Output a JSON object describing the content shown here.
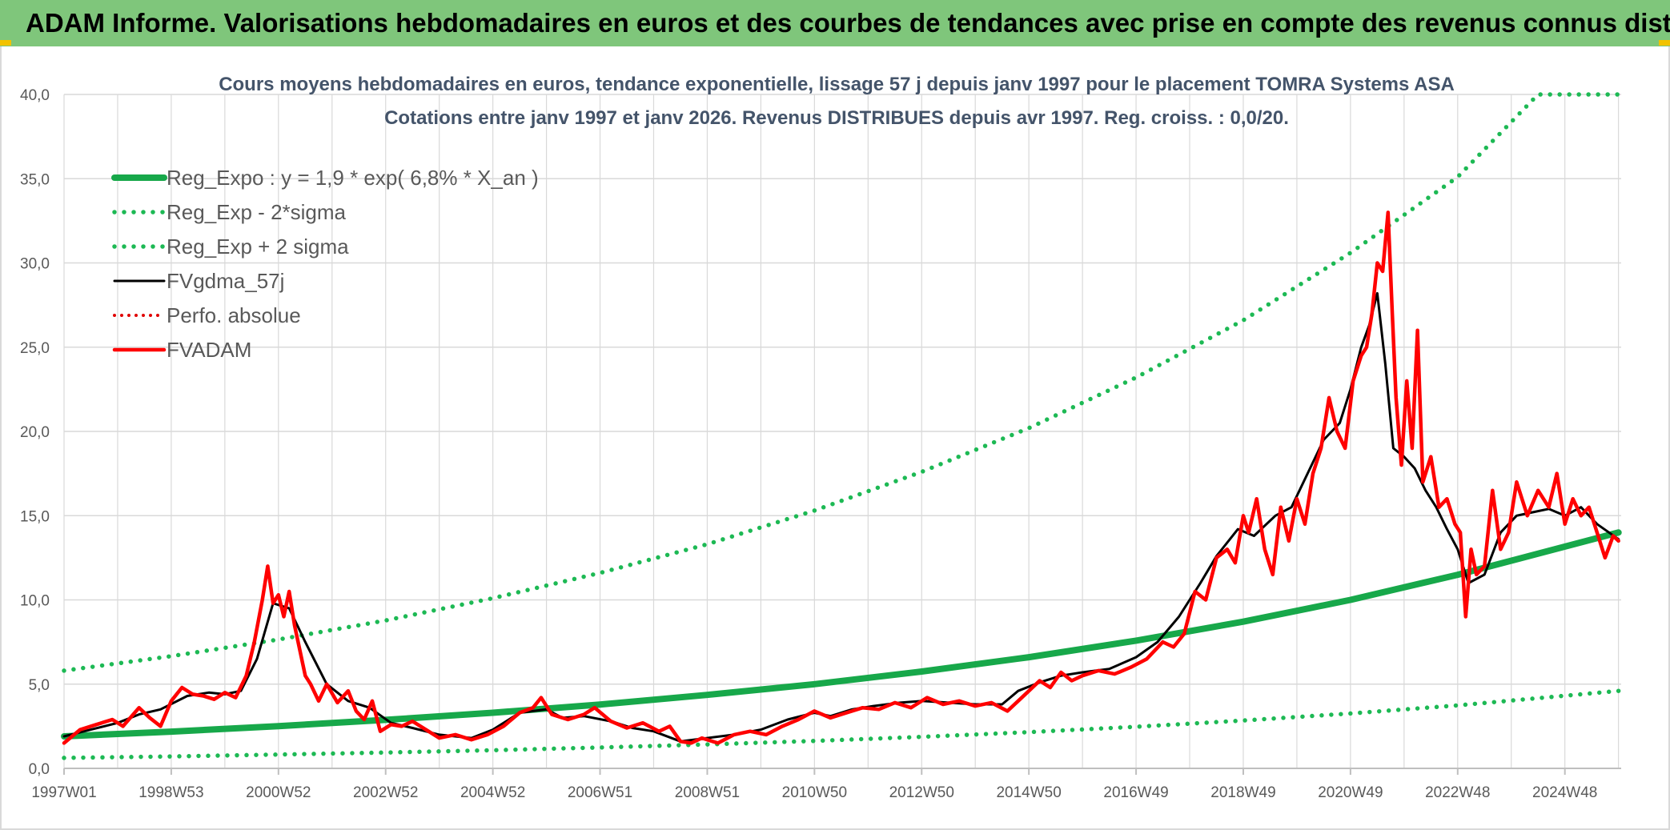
{
  "header": {
    "title": "ADAM Informe. Valorisations hebdomadaires en euros et des courbes de tendances avec prise en compte des revenus connus distribués"
  },
  "chart_data": {
    "type": "line",
    "title": "Cours moyens hebdomadaires en euros, tendance exponentielle, lissage 57 j depuis janv 1997 pour le placement TOMRA Systems ASA",
    "subtitle": "Cotations entre janv 1997 et janv 2026. Revenus DISTRIBUES depuis avr 1997. Reg. croiss. : 0,0/20.",
    "xlabel": "",
    "ylabel": "",
    "ylim": [
      0,
      40
    ],
    "xlim": [
      1997.0,
      2026.05
    ],
    "grid": true,
    "legend_position": "top-left",
    "y_tick_labels": [
      "0,0",
      "5,0",
      "10,0",
      "15,0",
      "20,0",
      "25,0",
      "30,0",
      "35,0",
      "40,0"
    ],
    "x_tick_labels": [
      "1997W01",
      "1998W53",
      "2000W52",
      "2002W52",
      "2004W52",
      "2006W51",
      "2008W51",
      "2010W50",
      "2012W50",
      "2014W50",
      "2016W49",
      "2018W49",
      "2020W49",
      "2022W48",
      "2024W48"
    ],
    "colors": {
      "trend": "#17a84a",
      "band": "#1db954",
      "smooth": "#000000",
      "perf": "#e00000",
      "price": "#ff0000",
      "grid": "#d9d9d9",
      "title_text": "#44546a",
      "axis_text": "#595959"
    },
    "series": [
      {
        "name": "Reg_Expo : y = 1,9 * exp( 6,8% *  X_an )",
        "style": "solid-thick",
        "x": [
          1997,
          1999,
          2001,
          2003,
          2005,
          2007,
          2009,
          2011,
          2013,
          2015,
          2017,
          2019,
          2021,
          2023,
          2026
        ],
        "values": [
          1.9,
          2.18,
          2.51,
          2.88,
          3.3,
          3.79,
          4.36,
          5.0,
          5.75,
          6.6,
          7.58,
          8.71,
          10.0,
          11.49,
          14.0
        ]
      },
      {
        "name": "Reg_Exp - 2*sigma",
        "style": "dotted",
        "x": [
          1997,
          1999,
          2001,
          2003,
          2005,
          2007,
          2009,
          2011,
          2013,
          2015,
          2017,
          2019,
          2021,
          2023,
          2026
        ],
        "values": [
          0.62,
          0.71,
          0.82,
          0.94,
          1.08,
          1.24,
          1.42,
          1.63,
          1.87,
          2.15,
          2.47,
          2.84,
          3.26,
          3.74,
          4.6
        ]
      },
      {
        "name": "Reg_Exp + 2 sigma",
        "style": "dotted",
        "x": [
          1997,
          1999,
          2001,
          2003,
          2005,
          2007,
          2009,
          2011,
          2013,
          2015,
          2017,
          2019,
          2021,
          2023,
          2024.5,
          2026
        ],
        "values": [
          5.8,
          6.66,
          7.65,
          8.78,
          10.1,
          11.6,
          13.3,
          15.3,
          17.6,
          20.2,
          23.2,
          26.6,
          30.6,
          35.1,
          40.0,
          40.0
        ]
      },
      {
        "name": "FVgdma_57j",
        "style": "solid",
        "x": [
          1997.0,
          1997.5,
          1998.0,
          1998.4,
          1998.8,
          1999.3,
          1999.7,
          2000.0,
          2000.3,
          2000.6,
          2000.9,
          2001.2,
          2001.5,
          2001.9,
          2002.3,
          2002.7,
          2003.1,
          2003.5,
          2004.0,
          2004.6,
          2005.0,
          2005.5,
          2006.0,
          2006.3,
          2006.7,
          2007.2,
          2007.6,
          2008.0,
          2008.5,
          2009.0,
          2009.5,
          2010.0,
          2010.5,
          2011.0,
          2011.3,
          2011.7,
          2012.1,
          2012.6,
          2013.0,
          2013.5,
          2014.0,
          2014.5,
          2014.8,
          2015.2,
          2015.6,
          2016.0,
          2016.5,
          2017.0,
          2017.4,
          2017.8,
          2018.2,
          2018.5,
          2018.9,
          2019.2,
          2019.6,
          2019.9,
          2020.2,
          2020.5,
          2020.8,
          2021.0,
          2021.2,
          2021.35,
          2021.5,
          2021.65,
          2021.8,
          2022.0,
          2022.2,
          2022.4,
          2022.6,
          2022.8,
          2023.0,
          2023.2,
          2023.5,
          2023.8,
          2024.1,
          2024.4,
          2024.7,
          2025.0,
          2025.3,
          2025.6,
          2026.0
        ],
        "values": [
          1.9,
          2.3,
          2.7,
          3.2,
          3.5,
          4.3,
          4.5,
          4.4,
          4.6,
          6.5,
          9.8,
          9.5,
          7.5,
          5.0,
          4.0,
          3.6,
          2.7,
          2.4,
          2.0,
          1.8,
          2.3,
          3.3,
          3.5,
          3.0,
          3.1,
          2.8,
          2.4,
          2.2,
          1.6,
          1.8,
          2.0,
          2.3,
          2.9,
          3.3,
          3.1,
          3.5,
          3.7,
          3.9,
          4.0,
          3.9,
          3.8,
          3.8,
          4.6,
          5.1,
          5.5,
          5.7,
          5.9,
          6.6,
          7.5,
          9.0,
          11.0,
          12.6,
          14.2,
          13.8,
          15.0,
          15.5,
          17.5,
          19.5,
          20.5,
          22.5,
          25.0,
          26.3,
          28.2,
          24.0,
          19.0,
          18.5,
          17.8,
          16.5,
          15.5,
          14.2,
          13.0,
          11.0,
          11.5,
          14.0,
          15.0,
          15.2,
          15.4,
          15.0,
          15.5,
          14.5,
          13.6
        ]
      },
      {
        "name": "Perfo. absolue",
        "style": "dotted-red",
        "x": [],
        "values": []
      },
      {
        "name": "FVADAM",
        "style": "solid-red-thick",
        "x": [
          1997.0,
          1997.3,
          1997.6,
          1997.9,
          1998.1,
          1998.4,
          1998.6,
          1998.8,
          1999.0,
          1999.2,
          1999.4,
          1999.6,
          1999.8,
          2000.0,
          2000.2,
          2000.4,
          2000.55,
          2000.7,
          2000.8,
          2000.9,
          2001.0,
          2001.1,
          2001.2,
          2001.3,
          2001.4,
          2001.5,
          2001.6,
          2001.75,
          2001.9,
          2002.1,
          2002.3,
          2002.45,
          2002.6,
          2002.75,
          2002.9,
          2003.1,
          2003.3,
          2003.5,
          2003.8,
          2004.0,
          2004.3,
          2004.6,
          2004.9,
          2005.2,
          2005.5,
          2005.75,
          2005.9,
          2006.1,
          2006.4,
          2006.7,
          2006.9,
          2007.2,
          2007.5,
          2007.8,
          2008.1,
          2008.3,
          2008.5,
          2008.7,
          2008.9,
          2009.2,
          2009.5,
          2009.8,
          2010.1,
          2010.4,
          2010.7,
          2011.0,
          2011.3,
          2011.6,
          2011.9,
          2012.2,
          2012.5,
          2012.8,
          2013.1,
          2013.4,
          2013.7,
          2014.0,
          2014.3,
          2014.6,
          2014.8,
          2015.0,
          2015.2,
          2015.4,
          2015.6,
          2015.8,
          2016.0,
          2016.3,
          2016.6,
          2016.9,
          2017.2,
          2017.5,
          2017.7,
          2017.9,
          2018.1,
          2018.3,
          2018.5,
          2018.7,
          2018.85,
          2019.0,
          2019.1,
          2019.25,
          2019.4,
          2019.55,
          2019.7,
          2019.85,
          2020.0,
          2020.15,
          2020.3,
          2020.45,
          2020.6,
          2020.75,
          2020.9,
          2021.05,
          2021.2,
          2021.3,
          2021.4,
          2021.5,
          2021.6,
          2021.7,
          2021.78,
          2021.85,
          2021.95,
          2022.05,
          2022.15,
          2022.25,
          2022.35,
          2022.5,
          2022.65,
          2022.8,
          2022.95,
          2023.05,
          2023.15,
          2023.25,
          2023.35,
          2023.5,
          2023.65,
          2023.8,
          2023.95,
          2024.1,
          2024.3,
          2024.5,
          2024.7,
          2024.85,
          2025.0,
          2025.15,
          2025.3,
          2025.45,
          2025.6,
          2025.75,
          2025.9,
          2026.0
        ],
        "values": [
          1.5,
          2.3,
          2.6,
          2.9,
          2.5,
          3.6,
          3.0,
          2.5,
          4.0,
          4.8,
          4.4,
          4.3,
          4.1,
          4.5,
          4.2,
          5.5,
          7.5,
          10.0,
          12.0,
          9.8,
          10.3,
          9.0,
          10.5,
          8.5,
          7.0,
          5.5,
          5.0,
          4.0,
          5.0,
          3.9,
          4.6,
          3.4,
          2.9,
          4.0,
          2.2,
          2.6,
          2.5,
          2.8,
          2.2,
          1.8,
          2.0,
          1.7,
          2.0,
          2.5,
          3.3,
          3.6,
          4.2,
          3.2,
          2.9,
          3.2,
          3.6,
          2.8,
          2.4,
          2.7,
          2.2,
          2.5,
          1.6,
          1.5,
          1.8,
          1.5,
          2.0,
          2.2,
          2.0,
          2.5,
          2.9,
          3.4,
          3.0,
          3.3,
          3.6,
          3.5,
          3.9,
          3.6,
          4.2,
          3.8,
          4.0,
          3.7,
          3.9,
          3.4,
          4.0,
          4.6,
          5.2,
          4.8,
          5.7,
          5.2,
          5.5,
          5.8,
          5.6,
          6.0,
          6.5,
          7.5,
          7.2,
          8.0,
          10.5,
          10.0,
          12.5,
          13.0,
          12.2,
          15.0,
          14.0,
          16.0,
          13.0,
          11.5,
          15.5,
          13.5,
          16.0,
          14.5,
          17.5,
          19.0,
          22.0,
          20.0,
          19.0,
          23.0,
          24.5,
          25.0,
          27.0,
          30.0,
          29.5,
          33.0,
          27.0,
          22.0,
          18.0,
          23.0,
          19.0,
          26.0,
          17.0,
          18.5,
          15.5,
          16.0,
          14.5,
          14.0,
          9.0,
          13.0,
          11.5,
          12.0,
          16.5,
          13.0,
          14.0,
          17.0,
          15.0,
          16.5,
          15.5,
          17.5,
          14.5,
          16.0,
          15.0,
          15.5,
          14.0,
          12.5,
          13.8,
          13.5
        ]
      }
    ]
  }
}
